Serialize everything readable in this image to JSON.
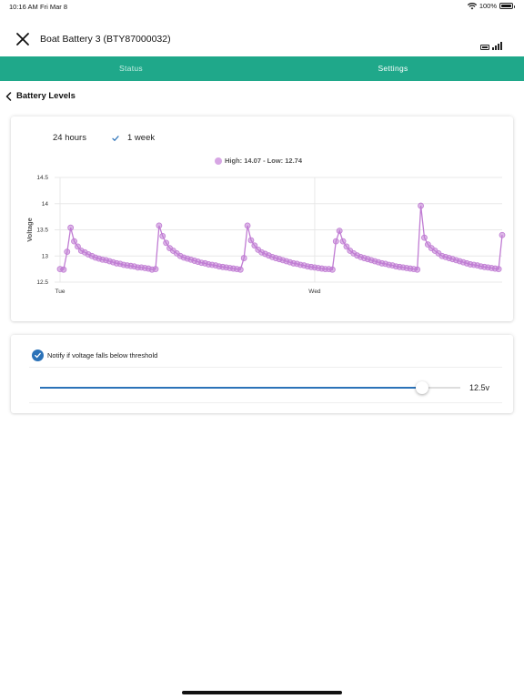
{
  "status_bar": {
    "time": "10:16 AM",
    "date": "Fri Mar 8",
    "battery": "100%"
  },
  "header": {
    "title": "Boat Battery 3 (BTY87000032)"
  },
  "tabs": [
    {
      "label": "Status",
      "active": false
    },
    {
      "label": "Settings",
      "active": true
    }
  ],
  "back": {
    "label": "Battery Levels"
  },
  "range": {
    "options": [
      "24 hours",
      "1 week"
    ],
    "selected": "1 week"
  },
  "legend": {
    "text": "High: 14.07 - Low: 12.74"
  },
  "colors": {
    "accent": "#1fa88a",
    "series": "#c07cd3",
    "blue": "#2b72b8"
  },
  "chart_data": {
    "type": "line",
    "ylabel": "Voltage",
    "ylim": [
      12.5,
      14.5
    ],
    "yticks": [
      "14.5",
      "14",
      "13.5",
      "13",
      "12.5"
    ],
    "xtick_labels": [
      {
        "label": "Tue",
        "at": 0
      },
      {
        "label": "Wed",
        "at": 72
      }
    ],
    "grid": true,
    "series": [
      {
        "values": [
          12.75,
          12.74,
          13.08,
          13.54,
          13.28,
          13.18,
          13.1,
          13.07,
          13.03,
          13.0,
          12.97,
          12.95,
          12.93,
          12.92,
          12.9,
          12.88,
          12.86,
          12.85,
          12.83,
          12.82,
          12.81,
          12.8,
          12.78,
          12.78,
          12.77,
          12.76,
          12.74,
          12.75,
          13.58,
          13.38,
          13.25,
          13.15,
          13.1,
          13.05,
          13.0,
          12.97,
          12.95,
          12.93,
          12.91,
          12.89,
          12.87,
          12.86,
          12.84,
          12.83,
          12.82,
          12.8,
          12.79,
          12.78,
          12.77,
          12.76,
          12.75,
          12.74,
          12.96,
          13.58,
          13.3,
          13.2,
          13.12,
          13.07,
          13.04,
          13.01,
          12.98,
          12.96,
          12.94,
          12.92,
          12.9,
          12.88,
          12.86,
          12.85,
          12.83,
          12.82,
          12.8,
          12.79,
          12.78,
          12.77,
          12.76,
          12.75,
          12.75,
          12.74,
          13.28,
          13.48,
          13.28,
          13.18,
          13.1,
          13.05,
          13.01,
          12.98,
          12.96,
          12.94,
          12.92,
          12.9,
          12.88,
          12.86,
          12.85,
          12.83,
          12.82,
          12.8,
          12.79,
          12.78,
          12.77,
          12.76,
          12.75,
          12.74,
          13.96,
          13.35,
          13.22,
          13.15,
          13.1,
          13.05,
          13.0,
          12.98,
          12.96,
          12.94,
          12.92,
          12.9,
          12.88,
          12.86,
          12.84,
          12.83,
          12.82,
          12.8,
          12.79,
          12.78,
          12.77,
          12.76,
          12.75,
          13.4
        ]
      }
    ]
  },
  "notify": {
    "label": "Notify if voltage falls below threshold",
    "checked": true,
    "value_text": "12.5v",
    "slider_fraction": 0.91
  }
}
